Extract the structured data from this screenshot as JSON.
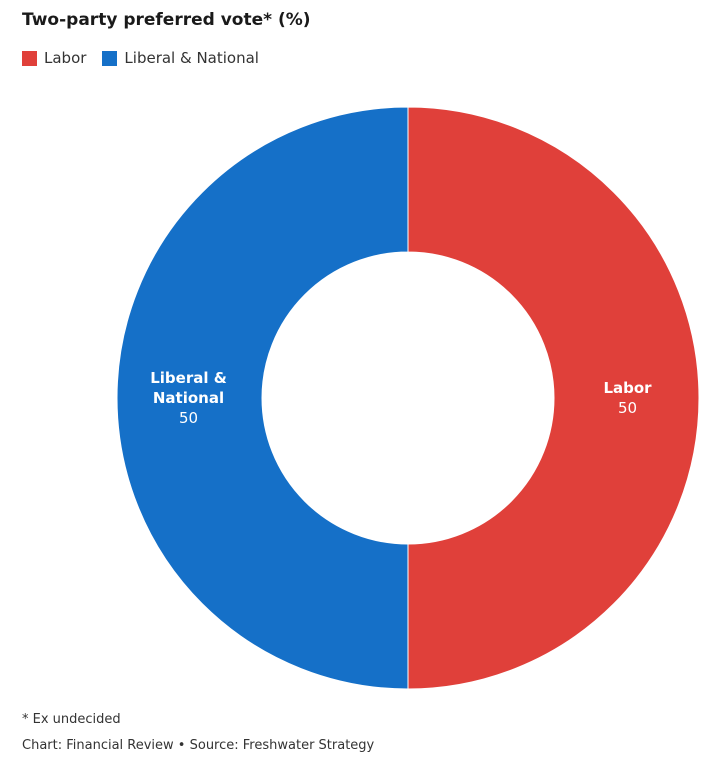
{
  "title": "Two-party preferred vote* (%)",
  "footnote": "* Ex undecided",
  "credit": "Chart: Financial Review • Source: Freshwater Strategy",
  "chart_data": {
    "type": "pie",
    "variant": "donut",
    "title": "Two-party preferred vote* (%)",
    "legend_position": "top-left",
    "slices": [
      {
        "name": "Labor",
        "label_lines": [
          "Labor"
        ],
        "value": 50,
        "value_label": "50",
        "color": "#e0403a"
      },
      {
        "name": "Liberal & National",
        "label_lines": [
          "Liberal &",
          "National"
        ],
        "value": 50,
        "value_label": "50",
        "color": "#1570c8"
      }
    ]
  }
}
